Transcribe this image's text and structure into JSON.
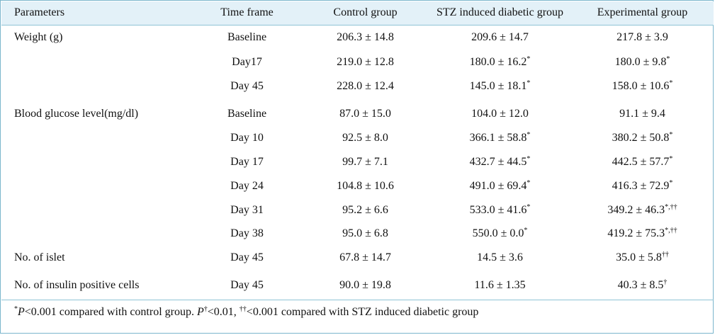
{
  "table": {
    "headers": [
      "Parameters",
      "Time frame",
      "Control group",
      "STZ induced diabetic group",
      "Experimental group"
    ],
    "rows": [
      {
        "parameter": "Weight (g)",
        "time": "Baseline",
        "control": "206.3 ± 14.8",
        "stz": "209.6 ± 14.7",
        "stz_sup": "",
        "exp": "217.8 ± 3.9",
        "exp_sup": ""
      },
      {
        "parameter": "",
        "time": "Day17",
        "control": "219.0 ± 12.8",
        "stz": "180.0 ± 16.2",
        "stz_sup": "*",
        "exp": "180.0 ± 9.8",
        "exp_sup": "*"
      },
      {
        "parameter": "",
        "time": "Day 45",
        "control": "228.0 ± 12.4",
        "stz": "145.0 ± 18.1",
        "stz_sup": "*",
        "exp": "158.0 ± 10.6",
        "exp_sup": "*"
      },
      {
        "parameter": "Blood glucose level(mg/dl)",
        "time": "Baseline",
        "control": "87.0 ± 15.0",
        "stz": "104.0 ± 12.0",
        "stz_sup": "",
        "exp": "91.1 ± 9.4",
        "exp_sup": ""
      },
      {
        "parameter": "",
        "time": "Day 10",
        "control": "92.5 ± 8.0",
        "stz": "366.1 ± 58.8",
        "stz_sup": "*",
        "exp": "380.2 ± 50.8",
        "exp_sup": "*"
      },
      {
        "parameter": "",
        "time": "Day 17",
        "control": "99.7 ± 7.1",
        "stz": "432.7 ± 44.5",
        "stz_sup": "*",
        "exp": "442.5 ± 57.7",
        "exp_sup": "*"
      },
      {
        "parameter": "",
        "time": "Day 24",
        "control": "104.8 ± 10.6",
        "stz": "491.0 ± 69.4",
        "stz_sup": "*",
        "exp": "416.3 ± 72.9",
        "exp_sup": "*"
      },
      {
        "parameter": "",
        "time": "Day 31",
        "control": "95.2 ± 6.6",
        "stz": "533.0 ± 41.6",
        "stz_sup": "*",
        "exp": "349.2 ± 46.3",
        "exp_sup": "*,††"
      },
      {
        "parameter": "",
        "time": "Day 38",
        "control": "95.0 ± 6.8",
        "stz": "550.0 ± 0.0",
        "stz_sup": "*",
        "exp": "419.2 ± 75.3",
        "exp_sup": "*,††"
      },
      {
        "parameter": "No. of islet",
        "time": "Day 45",
        "control": "67.8 ± 14.7",
        "stz": "14.5 ± 3.6",
        "stz_sup": "",
        "exp": "35.0 ± 5.8",
        "exp_sup": "††"
      },
      {
        "parameter": "No. of insulin positive cells",
        "time": "Day 45",
        "control": "90.0 ± 19.8",
        "stz": "11.6 ± 1.35",
        "stz_sup": "",
        "exp": "40.3 ± 8.5",
        "exp_sup": "†"
      }
    ]
  },
  "footnote": {
    "sup1": "*",
    "italic1": "P",
    "text1": "<0.001 compared with control group. ",
    "italic2": "P",
    "sup2": "†",
    "text2": "<0.01, ",
    "sup3": "††",
    "text3": "<0.001 compared with STZ induced diabetic group"
  },
  "colors": {
    "header_bg": "#e3f1f8",
    "border": "#7bb6cc",
    "rule": "#8fc3d6"
  }
}
